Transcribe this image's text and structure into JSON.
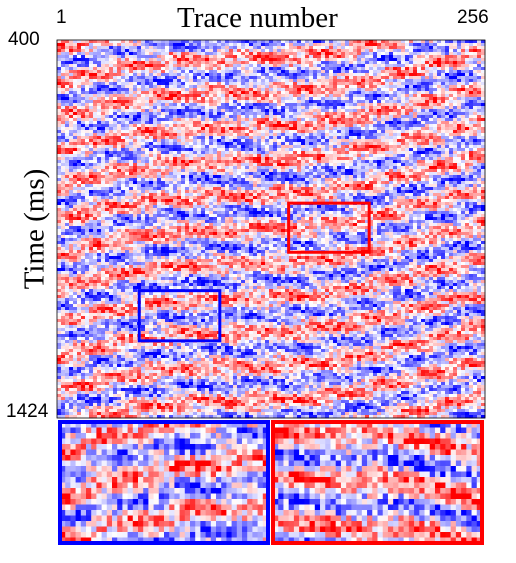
{
  "chart_data": {
    "type": "heatmap",
    "title": "",
    "xlabel": "Trace number",
    "ylabel": "Time (ms)",
    "x_ticks": [
      "1",
      "256"
    ],
    "y_ticks": [
      "400",
      "1424"
    ],
    "x_range": [
      1,
      256
    ],
    "y_range_ms": [
      400,
      1424
    ],
    "y_inverted": true,
    "colormap": [
      "#0000ff",
      "#ffffff",
      "#ff0000"
    ],
    "highlight_boxes": [
      {
        "name": "blue-box",
        "color": "#0000ff",
        "trace_range": [
          50,
          98
        ],
        "time_range_ms": [
          1079,
          1215
        ]
      },
      {
        "name": "red-box",
        "color": "#ff0000",
        "trace_range": [
          139,
          187
        ],
        "time_range_ms": [
          842,
          975
        ]
      }
    ],
    "insets": [
      {
        "name": "blue-zoom",
        "border": "#0000ff"
      },
      {
        "name": "red-zoom",
        "border": "#ff0000"
      }
    ],
    "grid": false
  }
}
